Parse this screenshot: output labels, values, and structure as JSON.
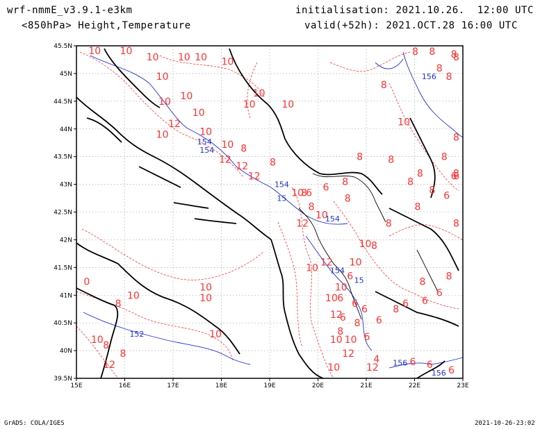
{
  "header": {
    "model_line": "wrf-nmmE_v3.9.1-e3km",
    "field_line": "<850hPa> Height,Temperature",
    "init_line": "initialisation: 2021.10.26.  12:00 UTC",
    "valid_line": "valid(+52h): 2021.OCT.28 16:00 UTC"
  },
  "footer": {
    "credit": "GrADS: COLA/IGES",
    "timestamp": "2021-10-26-23:02"
  },
  "colors": {
    "temperature": "#ff3030",
    "height": "#2030d0",
    "coast": "#000000",
    "grid": "#999999"
  },
  "chart_data": {
    "type": "map",
    "lon_range": [
      15,
      23
    ],
    "lat_range": [
      39.5,
      45.5
    ],
    "x_ticks": [
      "15E",
      "16E",
      "17E",
      "18E",
      "19E",
      "20E",
      "21E",
      "22E",
      "23E"
    ],
    "y_ticks": [
      "45.5N",
      "45N",
      "44.5N",
      "44N",
      "43.5N",
      "43N",
      "42.5N",
      "42N",
      "41.5N",
      "41N",
      "40.5N",
      "40N",
      "39.5N"
    ],
    "grid": true,
    "temperature_labels": [
      {
        "text": "10",
        "lon": 15.25,
        "lat": 45.45
      },
      {
        "text": "10",
        "lon": 15.9,
        "lat": 45.45
      },
      {
        "text": "10",
        "lon": 16.45,
        "lat": 45.3
      },
      {
        "text": "10",
        "lon": 17.1,
        "lat": 45.3
      },
      {
        "text": "10",
        "lon": 17.45,
        "lat": 45.3
      },
      {
        "text": "10",
        "lon": 18.0,
        "lat": 45.22
      },
      {
        "text": "10",
        "lon": 16.65,
        "lat": 44.95
      },
      {
        "text": "10",
        "lon": 17.15,
        "lat": 44.6
      },
      {
        "text": "10",
        "lon": 16.7,
        "lat": 44.5
      },
      {
        "text": "10",
        "lon": 17.4,
        "lat": 44.3
      },
      {
        "text": "10",
        "lon": 18.65,
        "lat": 44.65
      },
      {
        "text": "10",
        "lon": 18.45,
        "lat": 44.45
      },
      {
        "text": "10",
        "lon": 19.25,
        "lat": 44.45
      },
      {
        "text": "12",
        "lon": 16.9,
        "lat": 44.1
      },
      {
        "text": "10",
        "lon": 16.65,
        "lat": 43.9
      },
      {
        "text": "10",
        "lon": 17.55,
        "lat": 43.95
      },
      {
        "text": "10",
        "lon": 18.0,
        "lat": 43.72
      },
      {
        "text": "8",
        "lon": 18.4,
        "lat": 43.65
      },
      {
        "text": "12",
        "lon": 17.95,
        "lat": 43.45
      },
      {
        "text": "12",
        "lon": 18.3,
        "lat": 43.33
      },
      {
        "text": "12",
        "lon": 18.55,
        "lat": 43.15
      },
      {
        "text": "8",
        "lon": 19.0,
        "lat": 43.4
      },
      {
        "text": "10",
        "lon": 19.45,
        "lat": 42.85
      },
      {
        "text": "8",
        "lon": 19.65,
        "lat": 42.85
      },
      {
        "text": "6",
        "lon": 19.75,
        "lat": 42.85
      },
      {
        "text": "6",
        "lon": 20.1,
        "lat": 42.95
      },
      {
        "text": "8",
        "lon": 19.8,
        "lat": 42.6
      },
      {
        "text": "10",
        "lon": 19.95,
        "lat": 42.45
      },
      {
        "text": "12",
        "lon": 19.55,
        "lat": 42.3
      },
      {
        "text": "8",
        "lon": 20.5,
        "lat": 43.05
      },
      {
        "text": "8",
        "lon": 20.55,
        "lat": 42.75
      },
      {
        "text": "8",
        "lon": 21.4,
        "lat": 42.3
      },
      {
        "text": "10",
        "lon": 20.85,
        "lat": 41.93
      },
      {
        "text": "8",
        "lon": 21.1,
        "lat": 41.9
      },
      {
        "text": "10",
        "lon": 20.65,
        "lat": 41.6
      },
      {
        "text": "12",
        "lon": 20.05,
        "lat": 41.6
      },
      {
        "text": "10",
        "lon": 19.75,
        "lat": 41.5
      },
      {
        "text": "6",
        "lon": 20.6,
        "lat": 41.35
      },
      {
        "text": "10",
        "lon": 20.35,
        "lat": 41.15
      },
      {
        "text": "10",
        "lon": 20.15,
        "lat": 40.95
      },
      {
        "text": "6",
        "lon": 20.4,
        "lat": 40.95
      },
      {
        "text": "6",
        "lon": 20.7,
        "lat": 40.85
      },
      {
        "text": "6",
        "lon": 20.9,
        "lat": 40.75
      },
      {
        "text": "12",
        "lon": 20.25,
        "lat": 40.65
      },
      {
        "text": "6",
        "lon": 20.45,
        "lat": 40.6
      },
      {
        "text": "8",
        "lon": 20.75,
        "lat": 40.5
      },
      {
        "text": "6",
        "lon": 21.2,
        "lat": 40.55
      },
      {
        "text": "10",
        "lon": 20.25,
        "lat": 40.2
      },
      {
        "text": "10",
        "lon": 20.55,
        "lat": 40.2
      },
      {
        "text": "8",
        "lon": 20.4,
        "lat": 40.35
      },
      {
        "text": "6",
        "lon": 20.95,
        "lat": 40.25
      },
      {
        "text": "12",
        "lon": 20.5,
        "lat": 39.95
      },
      {
        "text": "4",
        "lon": 21.15,
        "lat": 39.85
      },
      {
        "text": "12",
        "lon": 21.0,
        "lat": 39.7
      },
      {
        "text": "10",
        "lon": 20.2,
        "lat": 39.7
      },
      {
        "text": "8",
        "lon": 21.55,
        "lat": 40.75
      },
      {
        "text": "6",
        "lon": 21.75,
        "lat": 40.85
      },
      {
        "text": "8",
        "lon": 22.1,
        "lat": 41.25
      },
      {
        "text": "6",
        "lon": 22.15,
        "lat": 40.9
      },
      {
        "text": "6",
        "lon": 22.45,
        "lat": 41.05
      },
      {
        "text": "8",
        "lon": 22.65,
        "lat": 41.35
      },
      {
        "text": "6",
        "lon": 21.9,
        "lat": 39.8
      },
      {
        "text": "6",
        "lon": 22.25,
        "lat": 39.75
      },
      {
        "text": "6",
        "lon": 22.7,
        "lat": 39.65
      },
      {
        "text": "8",
        "lon": 21.3,
        "lat": 44.8
      },
      {
        "text": "10",
        "lon": 21.65,
        "lat": 44.13
      },
      {
        "text": "8",
        "lon": 22.05,
        "lat": 43.2
      },
      {
        "text": "8",
        "lon": 22.3,
        "lat": 42.9
      },
      {
        "text": "8",
        "lon": 22.0,
        "lat": 42.6
      },
      {
        "text": "6",
        "lon": 22.6,
        "lat": 42.8
      },
      {
        "text": "6",
        "lon": 22.75,
        "lat": 43.15
      },
      {
        "text": "8",
        "lon": 22.9,
        "lat": 42.3
      },
      {
        "text": "8",
        "lon": 21.95,
        "lat": 45.4
      },
      {
        "text": "8",
        "lon": 22.3,
        "lat": 45.4
      },
      {
        "text": "8",
        "lon": 22.75,
        "lat": 45.35
      },
      {
        "text": "8",
        "lon": 23.0,
        "lat": 45.3
      },
      {
        "text": "8",
        "lon": 22.45,
        "lat": 45.1
      },
      {
        "text": "8",
        "lon": 22.65,
        "lat": 44.95
      },
      {
        "text": "8",
        "lon": 22.55,
        "lat": 43.5
      },
      {
        "text": "8",
        "lon": 22.8,
        "lat": 43.85
      },
      {
        "text": "6",
        "lon": 22.95,
        "lat": 43.15
      },
      {
        "text": "8",
        "lon": 22.85,
        "lat": 43.2
      },
      {
        "text": "8",
        "lon": 21.45,
        "lat": 43.45
      },
      {
        "text": "8",
        "lon": 21.85,
        "lat": 43.05
      },
      {
        "text": "8",
        "lon": 20.8,
        "lat": 43.5
      },
      {
        "text": "10",
        "lon": 16.05,
        "lat": 41.0
      },
      {
        "text": "10",
        "lon": 17.55,
        "lat": 40.95
      },
      {
        "text": "10",
        "lon": 17.55,
        "lat": 41.15
      },
      {
        "text": "8",
        "lon": 15.8,
        "lat": 40.85
      },
      {
        "text": "0",
        "lon": 15.15,
        "lat": 41.25
      },
      {
        "text": "10",
        "lon": 15.3,
        "lat": 40.2
      },
      {
        "text": "8",
        "lon": 15.55,
        "lat": 40.1
      },
      {
        "text": "8",
        "lon": 15.9,
        "lat": 39.95
      },
      {
        "text": "12",
        "lon": 15.55,
        "lat": 39.75
      },
      {
        "text": "10",
        "lon": 17.75,
        "lat": 40.3
      }
    ],
    "height_labels": [
      {
        "text": "156",
        "lon": 22.15,
        "lat": 44.95
      },
      {
        "text": "154",
        "lon": 17.5,
        "lat": 43.77
      },
      {
        "text": "154",
        "lon": 17.55,
        "lat": 43.62
      },
      {
        "text": "154",
        "lon": 19.1,
        "lat": 43.0
      },
      {
        "text": "15",
        "lon": 19.15,
        "lat": 42.75
      },
      {
        "text": "154",
        "lon": 20.15,
        "lat": 42.38
      },
      {
        "text": "154",
        "lon": 20.25,
        "lat": 41.45
      },
      {
        "text": "15",
        "lon": 20.75,
        "lat": 41.27
      },
      {
        "text": "152",
        "lon": 16.1,
        "lat": 40.3
      },
      {
        "text": "156",
        "lon": 21.55,
        "lat": 39.78
      },
      {
        "text": "156",
        "lon": 22.35,
        "lat": 39.6
      }
    ]
  }
}
